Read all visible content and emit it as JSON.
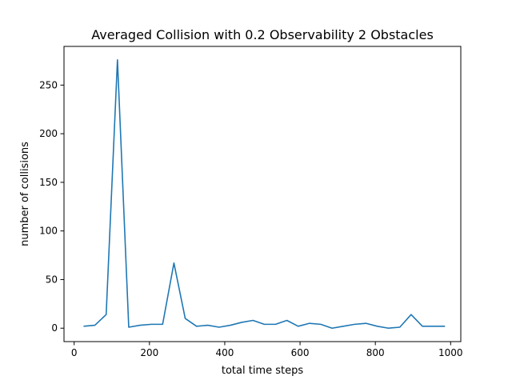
{
  "chart_data": {
    "type": "line",
    "title": "Averaged Collision with 0.2 Observability 2 Obstacles",
    "xlabel": "total time steps",
    "ylabel": "number of collisions",
    "xlim": [
      -27,
      1027
    ],
    "ylim": [
      -13.8,
      289.8
    ],
    "xticks": [
      0,
      200,
      400,
      600,
      800,
      1000
    ],
    "yticks": [
      0,
      50,
      100,
      150,
      200,
      250
    ],
    "grid": false,
    "color": "#1f77b4",
    "series": [
      {
        "x": [
          25,
          55,
          85,
          115,
          145,
          175,
          205,
          235,
          265,
          295,
          325,
          355,
          385,
          415,
          445,
          475,
          505,
          535,
          565,
          595,
          625,
          655,
          685,
          715,
          745,
          775,
          805,
          835,
          865,
          895,
          925,
          955,
          985
        ],
        "y": [
          2,
          3,
          14,
          276,
          1,
          3,
          4,
          4,
          67,
          10,
          2,
          3,
          1,
          3,
          6,
          8,
          4,
          4,
          8,
          2,
          5,
          4,
          0,
          2,
          4,
          5,
          2,
          0,
          1,
          14,
          2,
          2,
          2
        ]
      }
    ]
  }
}
